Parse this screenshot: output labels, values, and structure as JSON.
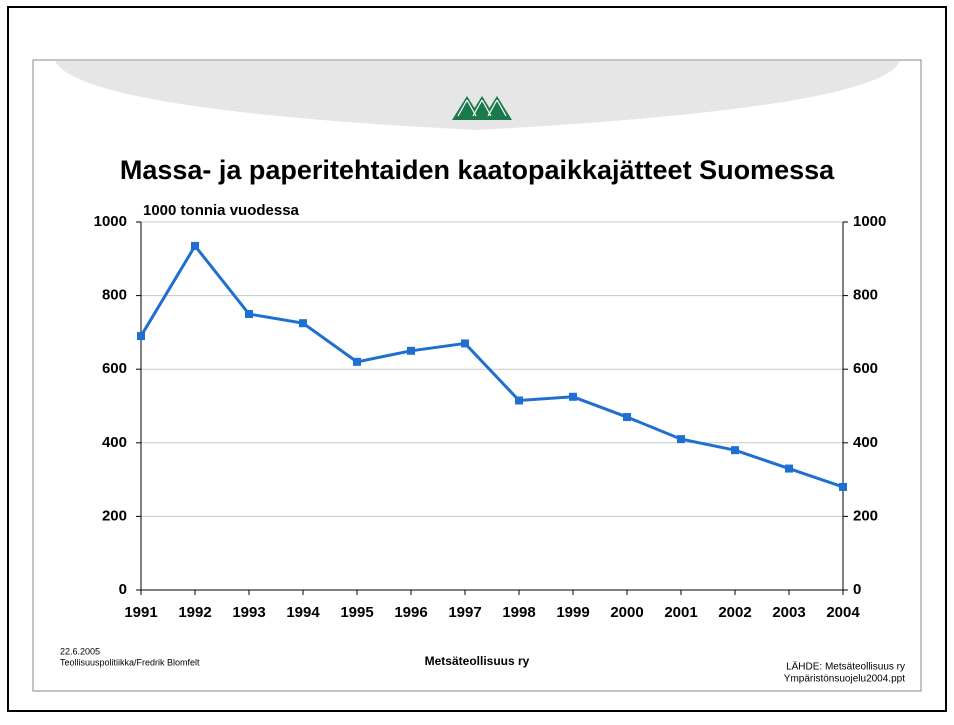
{
  "chart_data": {
    "type": "line",
    "title": "Massa- ja paperitehtaiden kaatopaikkajätteet Suomessa",
    "y_label": "1000 tonnia vuodessa",
    "categories": [
      "1991",
      "1992",
      "1993",
      "1994",
      "1995",
      "1996",
      "1997",
      "1998",
      "1999",
      "2000",
      "2001",
      "2002",
      "2003",
      "2004"
    ],
    "series": [
      {
        "name": "Kaatopaikkajätteet",
        "color": "#1f6fd0",
        "values": [
          690,
          935,
          750,
          725,
          620,
          650,
          670,
          515,
          525,
          470,
          410,
          380,
          330,
          280
        ]
      }
    ],
    "ylim": [
      0,
      1000
    ],
    "yticks": [
      0,
      200,
      400,
      600,
      800,
      1000
    ],
    "y2lim": [
      0,
      1000
    ],
    "y2ticks": [
      0,
      200,
      400,
      600,
      800,
      1000
    ],
    "grid": true,
    "legend": false
  },
  "footer": {
    "date": "22.6.2005",
    "author": "Teollisuuspolitiikka/Fredrik Blomfelt",
    "organization": "Metsäteollisuus ry",
    "source": "LÄHDE: Metsäteollisuus ry",
    "file": "Ympäristönsuojelu2004.ppt"
  }
}
